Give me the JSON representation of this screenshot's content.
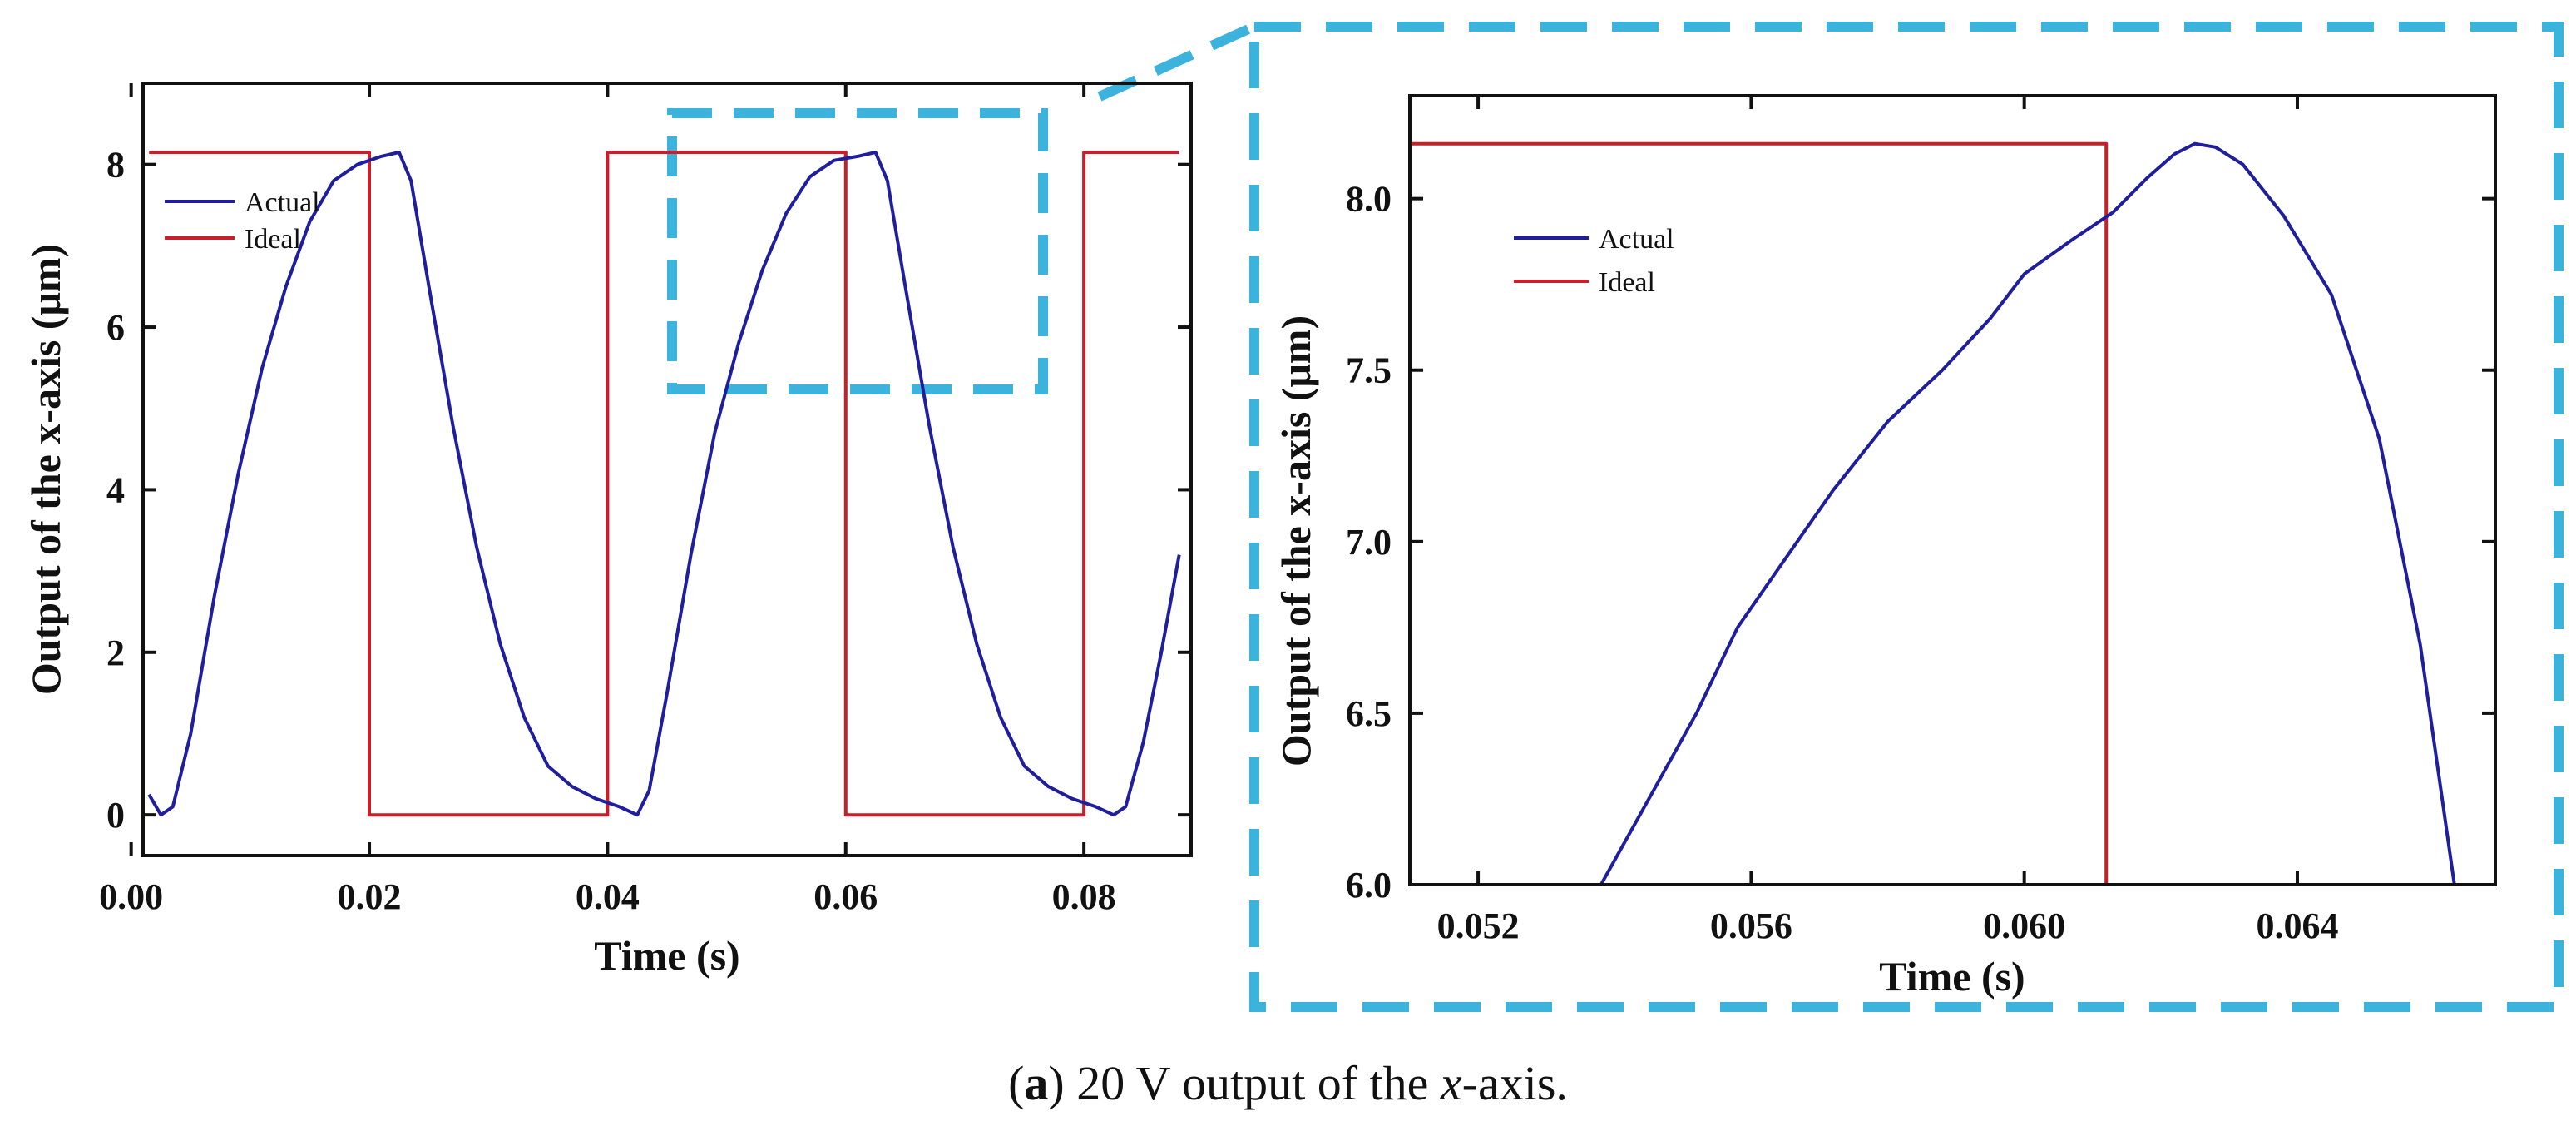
{
  "colors": {
    "actual": "#1f1f9e",
    "ideal": "#c8202a",
    "zoom_box": "#3bb3dc",
    "axis": "#111111"
  },
  "chart_data": [
    {
      "type": "line",
      "title": "",
      "xlabel": "Time (s)",
      "ylabel": "Output of the x-axis  (μm)",
      "xlim": [
        0.001,
        0.089
      ],
      "ylim": [
        -0.5,
        9
      ],
      "xticks": [
        0.0,
        0.02,
        0.04,
        0.06,
        0.08
      ],
      "xtick_labels": [
        "0.00",
        "0.02",
        "0.04",
        "0.06",
        "0.08"
      ],
      "yticks": [
        0,
        2,
        4,
        6,
        8
      ],
      "ytick_labels": [
        "0",
        "2",
        "4",
        "6",
        "8"
      ],
      "legend": [
        "Actual",
        "Ideal"
      ],
      "legend_position": "top-left",
      "zoom_region": {
        "x": [
          0.045,
          0.077
        ],
        "y": [
          5.3,
          8.6
        ]
      },
      "series": [
        {
          "name": "Actual",
          "x": [
            0.0015,
            0.0025,
            0.0035,
            0.005,
            0.007,
            0.009,
            0.011,
            0.013,
            0.015,
            0.017,
            0.019,
            0.021,
            0.0225,
            0.0235,
            0.025,
            0.027,
            0.029,
            0.031,
            0.033,
            0.035,
            0.037,
            0.039,
            0.041,
            0.0425,
            0.0435,
            0.045,
            0.047,
            0.049,
            0.051,
            0.053,
            0.055,
            0.057,
            0.059,
            0.061,
            0.0625,
            0.0635,
            0.065,
            0.067,
            0.069,
            0.071,
            0.073,
            0.075,
            0.077,
            0.079,
            0.081,
            0.0825,
            0.0835,
            0.085,
            0.0865,
            0.088
          ],
          "y": [
            0.25,
            0.0,
            0.1,
            1.0,
            2.7,
            4.2,
            5.5,
            6.5,
            7.3,
            7.8,
            8.0,
            8.1,
            8.15,
            7.8,
            6.5,
            4.8,
            3.3,
            2.1,
            1.2,
            0.6,
            0.35,
            0.2,
            0.1,
            0.0,
            0.3,
            1.5,
            3.2,
            4.7,
            5.8,
            6.7,
            7.4,
            7.85,
            8.05,
            8.1,
            8.15,
            7.8,
            6.5,
            4.8,
            3.3,
            2.1,
            1.2,
            0.6,
            0.35,
            0.2,
            0.1,
            0.0,
            0.1,
            0.9,
            2.0,
            3.2
          ]
        },
        {
          "name": "Ideal",
          "x": [
            0.0015,
            0.02,
            0.02,
            0.04,
            0.04,
            0.06,
            0.06,
            0.08,
            0.08,
            0.088
          ],
          "y": [
            8.15,
            8.15,
            0,
            0,
            8.15,
            8.15,
            0,
            0,
            8.15,
            8.15
          ]
        }
      ]
    },
    {
      "type": "line",
      "title": "",
      "xlabel": "Time (s)",
      "ylabel": "Output of the x-axis  (μm)",
      "xlim": [
        0.051,
        0.0669
      ],
      "ylim": [
        6.0,
        8.3
      ],
      "xticks": [
        0.052,
        0.056,
        0.06,
        0.064
      ],
      "xtick_labels": [
        "0.052",
        "0.056",
        "0.060",
        "0.064"
      ],
      "yticks": [
        6.0,
        6.5,
        7.0,
        7.5,
        8.0
      ],
      "ytick_labels": [
        "6.0",
        "6.5",
        "7.0",
        "7.5",
        "8.0"
      ],
      "legend": [
        "Actual",
        "Ideal"
      ],
      "legend_position": "top-left",
      "series": [
        {
          "name": "Actual",
          "x": [
            0.0538,
            0.0545,
            0.0552,
            0.0558,
            0.0565,
            0.0572,
            0.058,
            0.0588,
            0.0595,
            0.06,
            0.0607,
            0.0613,
            0.0618,
            0.0622,
            0.0625,
            0.0628,
            0.0632,
            0.0638,
            0.0645,
            0.0652,
            0.0658,
            0.0663
          ],
          "y": [
            6.0,
            6.25,
            6.5,
            6.75,
            6.95,
            7.15,
            7.35,
            7.5,
            7.65,
            7.78,
            7.88,
            7.96,
            8.06,
            8.13,
            8.16,
            8.15,
            8.1,
            7.95,
            7.72,
            7.3,
            6.7,
            6.0
          ]
        },
        {
          "name": "Ideal",
          "x": [
            0.051,
            0.0612,
            0.0612
          ],
          "y": [
            8.16,
            8.16,
            6.0
          ]
        }
      ]
    }
  ],
  "caption": {
    "label": "a",
    "text_before": " 20 V output of the ",
    "var": "x",
    "text_after": "-axis.",
    "open_paren": "(",
    "close_paren": ")"
  }
}
